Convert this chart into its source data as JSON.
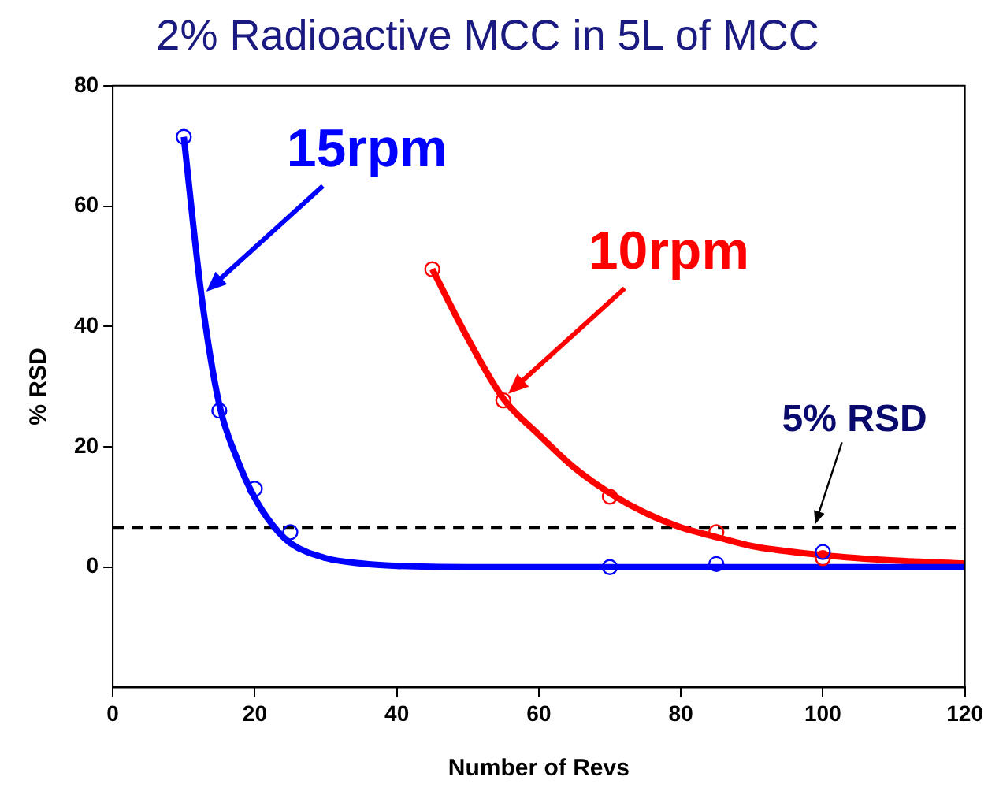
{
  "chart_data": {
    "type": "scatter",
    "title": "2% Radioactive MCC in 5L of MCC",
    "xlabel": "Number of Revs",
    "ylabel": "% RSD",
    "xlim": [
      0,
      120
    ],
    "xticks": [
      0,
      20,
      40,
      60,
      80,
      100,
      120
    ],
    "ylim": [
      -20,
      80
    ],
    "yticks": [
      0,
      20,
      40,
      60,
      80
    ],
    "grid": false,
    "legend": false,
    "marker": "circle",
    "series": [
      {
        "color": "#0000ff",
        "x": [
          10,
          15,
          20,
          25,
          70,
          85,
          100
        ],
        "values": [
          71.5,
          26,
          13,
          5.8,
          0,
          0.5,
          2.5
        ]
      },
      {
        "color": "#ff0000",
        "x": [
          45,
          55,
          70,
          85,
          100
        ],
        "values": [
          49.5,
          27.7,
          11.7,
          5.8,
          1.5
        ]
      },
      {
        "type": "line",
        "name": "15rpm",
        "color": "#0000ff",
        "marker": "none",
        "x": [
          10,
          12.5,
          15,
          17.5,
          20,
          22.5,
          25,
          30,
          35,
          40,
          50,
          120
        ],
        "values": [
          71.5,
          45,
          27,
          18,
          11.5,
          7,
          4,
          1.5,
          0.6,
          0.2,
          0,
          0
        ]
      },
      {
        "type": "line",
        "name": "10rpm",
        "color": "#ff0000",
        "marker": "none",
        "x": [
          45,
          50,
          55,
          60,
          65,
          70,
          75,
          80,
          85,
          90,
          100,
          110,
          120
        ],
        "values": [
          49.5,
          38,
          28,
          22,
          16.5,
          12.3,
          9,
          6.6,
          5,
          3.5,
          2,
          1.1,
          0.6
        ]
      }
    ],
    "ref_lines": [
      {
        "axis": "y",
        "value": 6.6,
        "label": "5% RSD",
        "color": "#000000",
        "line_style": "dashed"
      }
    ]
  }
}
